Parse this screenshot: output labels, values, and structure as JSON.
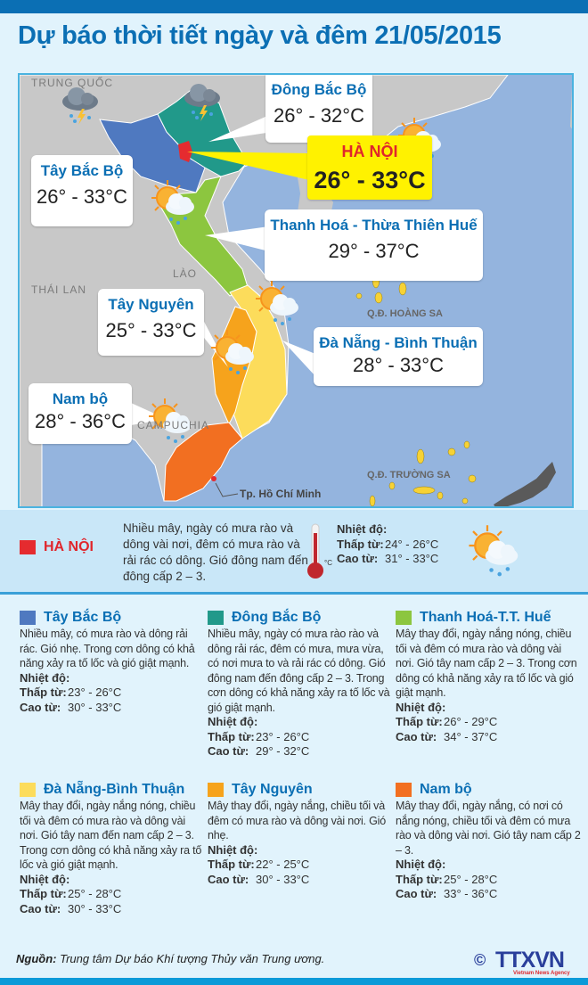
{
  "title": "Dự báo thời tiết ngày và đêm 21/05/2015",
  "map": {
    "countries": {
      "china": "TRUNG QUỐC",
      "laos": "LÀO",
      "thailand": "THÁI LAN",
      "cambodia": "CAMPUCHIA"
    },
    "islands": {
      "hoang_sa": "Q.Đ. HOÀNG SA",
      "truong_sa": "Q.Đ. TRƯỜNG SA"
    },
    "city": "Tp. Hồ Chí Minh",
    "callouts": [
      {
        "name": "Đông Bắc Bộ",
        "temp": "26° - 32°C",
        "icon": "storm-cloud-icon"
      },
      {
        "name": "Tây Bắc Bộ",
        "temp": "26° - 33°C",
        "icon": "storm-cloud-icon"
      },
      {
        "name": "HÀ NỘI",
        "temp": "26° - 33°C",
        "icon": "sun-cloud-rain-icon"
      },
      {
        "name": "Thanh Hoá - Thừa Thiên Huế",
        "temp": "29° - 37°C",
        "icon": "sun-cloud-rain-icon"
      },
      {
        "name": "Tây Nguyên",
        "temp": "25° - 33°C",
        "icon": "sun-cloud-rain-icon"
      },
      {
        "name": "Đà Nẵng - Bình Thuận",
        "temp": "28° - 33°C",
        "icon": "sun-cloud-rain-icon"
      },
      {
        "name": "Nam bộ",
        "temp": "28° - 36°C",
        "icon": "sun-cloud-rain-icon"
      }
    ],
    "colors": {
      "sea": "#94b4de",
      "land": "#c8c8c8",
      "tay_bac": "#4f79c0",
      "dong_bac": "#21998a",
      "hanoi": "#e52b2f",
      "thanh_hoa_hue": "#8cc63f",
      "da_nang_binh_thuan": "#fcdc5b",
      "tay_nguyen": "#f6a31c",
      "nam_bo": "#f26f21",
      "islands": "#f7d235"
    }
  },
  "hanoi": {
    "label": "HÀ NỘI",
    "color": "#e52b2f",
    "desc": "Nhiều mây, ngày có mưa rào và dông vài nơi, đêm có mưa rào và rải rác có dông. Gió đông nam đến đông cấp 2 – 3.",
    "unit": "°C",
    "temp_title": "Nhiệt độ:",
    "low_label": "Thấp từ:",
    "low": "24° - 26°C",
    "high_label": "Cao từ:",
    "high": "31° - 33°C"
  },
  "regions": [
    {
      "name": "Tây Bắc Bộ",
      "color": "#4f79c0",
      "desc": "Nhiều mây, có mưa rào và dông rải rác. Gió nhẹ. Trong cơn dông có khả năng xảy ra tố lốc và gió giật mạnh.",
      "temp_title": "Nhiệt độ:",
      "low_label": "Thấp từ:",
      "low": "23° - 26°C",
      "high_label": "Cao từ:",
      "high": "30° - 33°C"
    },
    {
      "name": "Đông Bắc Bộ",
      "color": "#21998a",
      "desc": "Nhiều mây, ngày có mưa rào rào và dông rải rác, đêm có mưa, mưa vừa, có nơi mưa to và rải rác có dông. Gió đông nam đến đông cấp 2 – 3. Trong cơn dông có khả năng xảy ra tố lốc và gió giật mạnh.",
      "temp_title": "Nhiệt độ:",
      "low_label": "Thấp từ:",
      "low": "23° - 26°C",
      "high_label": "Cao từ:",
      "high": "29° - 32°C"
    },
    {
      "name": "Thanh Hoá-T.T. Huế",
      "color": "#8cc63f",
      "desc": "Mây thay đổi, ngày nắng nóng, chiều tối và đêm có mưa rào và dông vài nơi. Gió tây nam cấp 2 – 3. Trong cơn dông có khả năng xảy ra tố lốc và gió giật mạnh.",
      "temp_title": "Nhiệt độ:",
      "low_label": "Thấp từ:",
      "low": "26° - 29°C",
      "high_label": "Cao từ:",
      "high": "34° - 37°C"
    },
    {
      "name": "Đà Nẵng-Bình Thuận",
      "color": "#fcdc5b",
      "desc": "Mây thay đổi, ngày nắng nóng, chiều tối và đêm có mưa rào và dông vài nơi. Gió tây nam đến nam cấp 2 – 3. Trong cơn dông có khả năng xảy ra tố lốc và gió giật mạnh.",
      "temp_title": "Nhiệt độ:",
      "low_label": "Thấp từ:",
      "low": "25° - 28°C",
      "high_label": "Cao từ:",
      "high": "30° - 33°C"
    },
    {
      "name": "Tây Nguyên",
      "color": "#f6a31c",
      "desc": "Mây thay đổi, ngày nắng, chiều tối và đêm có mưa rào và dông vài nơi. Gió nhẹ.",
      "temp_title": "Nhiệt độ:",
      "low_label": "Thấp từ:",
      "low": "22° - 25°C",
      "high_label": "Cao từ:",
      "high": "30° - 33°C"
    },
    {
      "name": "Nam bộ",
      "color": "#f26f21",
      "desc": "Mây thay đổi, ngày nắng, có nơi có nắng nóng, chiều tối và đêm có mưa rào và dông vài nơi. Gió tây nam cấp 2 – 3.",
      "temp_title": "Nhiệt độ:",
      "low_label": "Thấp từ:",
      "low": "25° - 28°C",
      "high_label": "Cao từ:",
      "high": "33° - 36°C"
    }
  ],
  "source": {
    "label": "Nguồn:",
    "text": " Trung tâm Dự báo Khí tượng Thủy văn Trung ương."
  },
  "logo": {
    "copyright": "©",
    "name": "TTXVN",
    "tagline": "Vietnam News Agency"
  }
}
